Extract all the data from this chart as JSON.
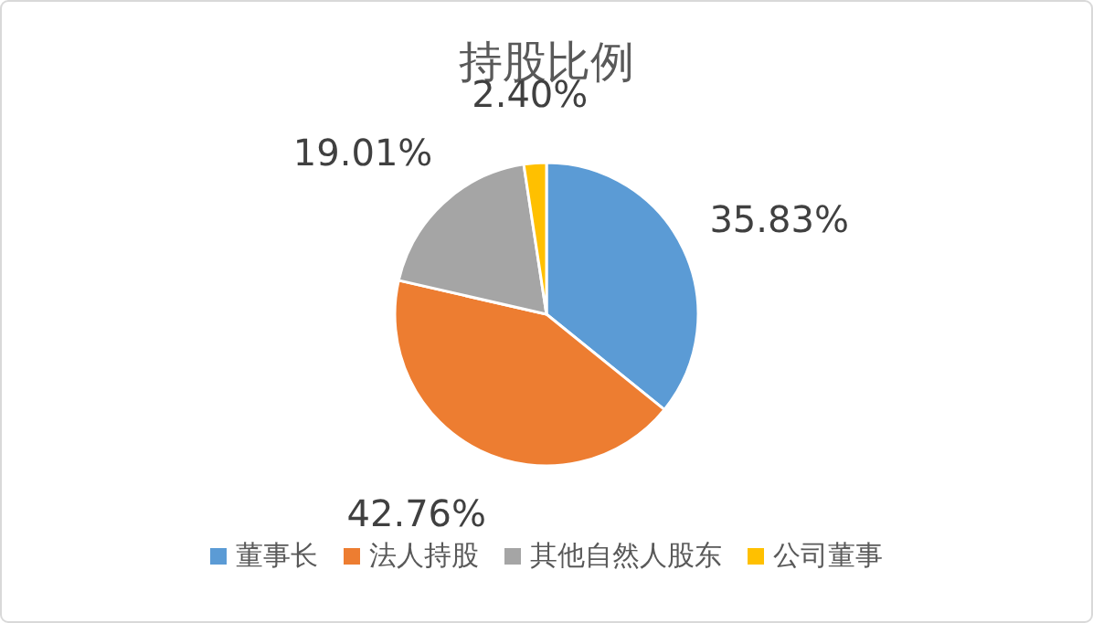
{
  "chart_data": {
    "type": "pie",
    "title": "持股比例",
    "categories": [
      "董事长",
      "法人持股",
      "其他自然人股东",
      "公司董事"
    ],
    "values": [
      35.83,
      42.76,
      19.01,
      2.4
    ],
    "colors": [
      "#5b9bd5",
      "#ed7d31",
      "#a5a5a5",
      "#ffc000"
    ],
    "value_labels": [
      "35.83%",
      "42.76%",
      "19.01%",
      "2.40%"
    ],
    "legend": "bottom"
  }
}
